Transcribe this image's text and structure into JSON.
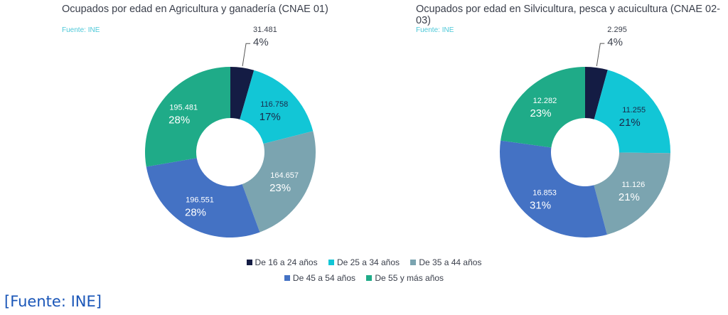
{
  "chart_data": [
    {
      "type": "pie",
      "donut": true,
      "title": "Ocupados por edad en Agricultura y ganadería (CNAE 01)",
      "source": "Fuente: INE",
      "categories": [
        "De 16 a 24 años",
        "De 25 a 34 años",
        "De 35 a 44 años",
        "De 45 a 54 años",
        "De 55 y más años"
      ],
      "values": [
        31481,
        116758,
        164657,
        196551,
        195481
      ],
      "value_labels": [
        "31.481",
        "116.758",
        "164.657",
        "196.551",
        "195.481"
      ],
      "percent_labels": [
        "4%",
        "17%",
        "23%",
        "28%",
        "28%"
      ]
    },
    {
      "type": "pie",
      "donut": true,
      "title": "Ocupados por edad en Silvicultura, pesca y acuicultura (CNAE 02-03)",
      "source": "Fuente: INE",
      "categories": [
        "De 16 a 24 años",
        "De 25 a 34 años",
        "De 35 a 44 años",
        "De 45 a 54 años",
        "De 55 y más años"
      ],
      "values": [
        2295,
        11255,
        11126,
        16853,
        12282
      ],
      "value_labels": [
        "2.295",
        "11.255",
        "11.126",
        "16.853",
        "12.282"
      ],
      "percent_labels": [
        "4%",
        "21%",
        "21%",
        "31%",
        "23%"
      ]
    }
  ],
  "legend": {
    "items": [
      "De 16 a 24 años",
      "De 25 a 34 años",
      "De 35 a 44 años",
      "De 45 a 54 años",
      "De 55 y más años"
    ],
    "placement": "bottom"
  },
  "colors": [
    "#141c44",
    "#12c6d6",
    "#7ba4b0",
    "#4472c4",
    "#1fab88"
  ],
  "label_colors": [
    "#3a3f4b",
    "#1a2a4a",
    "#ffffff",
    "#ffffff",
    "#ffffff"
  ],
  "footer": "[Fuente: INE]"
}
